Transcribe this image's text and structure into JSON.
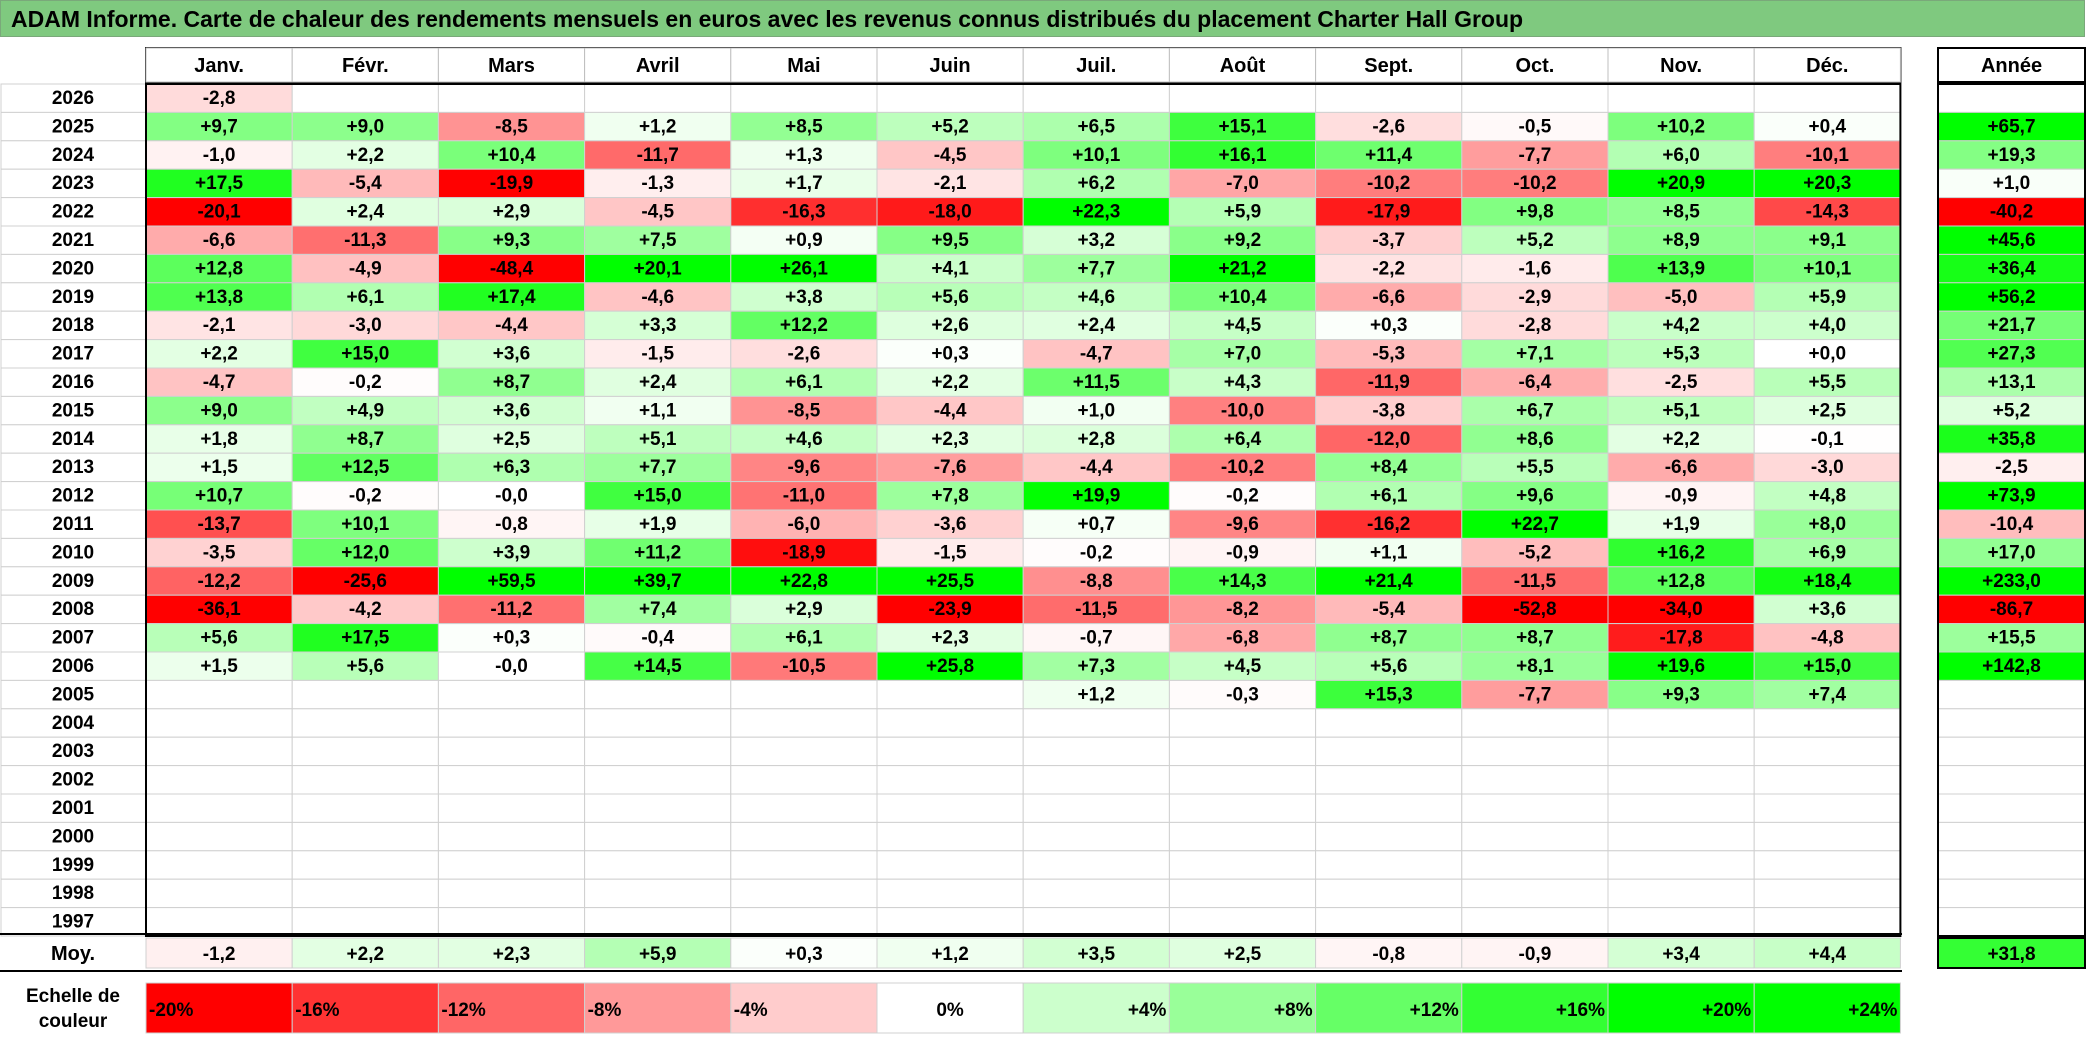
{
  "title": "ADAM Informe. Carte de chaleur des rendements mensuels en euros avec les revenus connus distribués du placement Charter Hall Group",
  "chart_data": {
    "type": "heatmap",
    "title": "ADAM Informe. Carte de chaleur des rendements mensuels en euros avec les revenus connus distribués du placement Charter Hall Group",
    "months": [
      "Janv.",
      "Févr.",
      "Mars",
      "Avril",
      "Mai",
      "Juin",
      "Juil.",
      "Août",
      "Sept.",
      "Oct.",
      "Nov.",
      "Déc."
    ],
    "year_header": "Année",
    "rows": [
      {
        "year": "2026",
        "values": [
          "-2,8",
          "",
          "",
          "",
          "",
          "",
          "",
          "",
          "",
          "",
          "",
          ""
        ],
        "annual": ""
      },
      {
        "year": "2025",
        "values": [
          "+9,7",
          "+9,0",
          "-8,5",
          "+1,2",
          "+8,5",
          "+5,2",
          "+6,5",
          "+15,1",
          "-2,6",
          "-0,5",
          "+10,2",
          "+0,4"
        ],
        "annual": "+65,7"
      },
      {
        "year": "2024",
        "values": [
          "-1,0",
          "+2,2",
          "+10,4",
          "-11,7",
          "+1,3",
          "-4,5",
          "+10,1",
          "+16,1",
          "+11,4",
          "-7,7",
          "+6,0",
          "-10,1"
        ],
        "annual": "+19,3"
      },
      {
        "year": "2023",
        "values": [
          "+17,5",
          "-5,4",
          "-19,9",
          "-1,3",
          "+1,7",
          "-2,1",
          "+6,2",
          "-7,0",
          "-10,2",
          "-10,2",
          "+20,9",
          "+20,3"
        ],
        "annual": "+1,0"
      },
      {
        "year": "2022",
        "values": [
          "-20,1",
          "+2,4",
          "+2,9",
          "-4,5",
          "-16,3",
          "-18,0",
          "+22,3",
          "+5,9",
          "-17,9",
          "+9,8",
          "+8,5",
          "-14,3"
        ],
        "annual": "-40,2"
      },
      {
        "year": "2021",
        "values": [
          "-6,6",
          "-11,3",
          "+9,3",
          "+7,5",
          "+0,9",
          "+9,5",
          "+3,2",
          "+9,2",
          "-3,7",
          "+5,2",
          "+8,9",
          "+9,1"
        ],
        "annual": "+45,6"
      },
      {
        "year": "2020",
        "values": [
          "+12,8",
          "-4,9",
          "-48,4",
          "+20,1",
          "+26,1",
          "+4,1",
          "+7,7",
          "+21,2",
          "-2,2",
          "-1,6",
          "+13,9",
          "+10,1"
        ],
        "annual": "+36,4"
      },
      {
        "year": "2019",
        "values": [
          "+13,8",
          "+6,1",
          "+17,4",
          "-4,6",
          "+3,8",
          "+5,6",
          "+4,6",
          "+10,4",
          "-6,6",
          "-2,9",
          "-5,0",
          "+5,9"
        ],
        "annual": "+56,2"
      },
      {
        "year": "2018",
        "values": [
          "-2,1",
          "-3,0",
          "-4,4",
          "+3,3",
          "+12,2",
          "+2,6",
          "+2,4",
          "+4,5",
          "+0,3",
          "-2,8",
          "+4,2",
          "+4,0"
        ],
        "annual": "+21,7"
      },
      {
        "year": "2017",
        "values": [
          "+2,2",
          "+15,0",
          "+3,6",
          "-1,5",
          "-2,6",
          "+0,3",
          "-4,7",
          "+7,0",
          "-5,3",
          "+7,1",
          "+5,3",
          "+0,0"
        ],
        "annual": "+27,3"
      },
      {
        "year": "2016",
        "values": [
          "-4,7",
          "-0,2",
          "+8,7",
          "+2,4",
          "+6,1",
          "+2,2",
          "+11,5",
          "+4,3",
          "-11,9",
          "-6,4",
          "-2,5",
          "+5,5"
        ],
        "annual": "+13,1"
      },
      {
        "year": "2015",
        "values": [
          "+9,0",
          "+4,9",
          "+3,6",
          "+1,1",
          "-8,5",
          "-4,4",
          "+1,0",
          "-10,0",
          "-3,8",
          "+6,7",
          "+5,1",
          "+2,5"
        ],
        "annual": "+5,2"
      },
      {
        "year": "2014",
        "values": [
          "+1,8",
          "+8,7",
          "+2,5",
          "+5,1",
          "+4,6",
          "+2,3",
          "+2,8",
          "+6,4",
          "-12,0",
          "+8,6",
          "+2,2",
          "-0,1"
        ],
        "annual": "+35,8"
      },
      {
        "year": "2013",
        "values": [
          "+1,5",
          "+12,5",
          "+6,3",
          "+7,7",
          "-9,6",
          "-7,6",
          "-4,4",
          "-10,2",
          "+8,4",
          "+5,5",
          "-6,6",
          "-3,0"
        ],
        "annual": "-2,5"
      },
      {
        "year": "2012",
        "values": [
          "+10,7",
          "-0,2",
          "-0,0",
          "+15,0",
          "-11,0",
          "+7,8",
          "+19,9",
          "-0,2",
          "+6,1",
          "+9,6",
          "-0,9",
          "+4,8"
        ],
        "annual": "+73,9"
      },
      {
        "year": "2011",
        "values": [
          "-13,7",
          "+10,1",
          "-0,8",
          "+1,9",
          "-6,0",
          "-3,6",
          "+0,7",
          "-9,6",
          "-16,2",
          "+22,7",
          "+1,9",
          "+8,0"
        ],
        "annual": "-10,4"
      },
      {
        "year": "2010",
        "values": [
          "-3,5",
          "+12,0",
          "+3,9",
          "+11,2",
          "-18,9",
          "-1,5",
          "-0,2",
          "-0,9",
          "+1,1",
          "-5,2",
          "+16,2",
          "+6,9"
        ],
        "annual": "+17,0"
      },
      {
        "year": "2009",
        "values": [
          "-12,2",
          "-25,6",
          "+59,5",
          "+39,7",
          "+22,8",
          "+25,5",
          "-8,8",
          "+14,3",
          "+21,4",
          "-11,5",
          "+12,8",
          "+18,4"
        ],
        "annual": "+233,0"
      },
      {
        "year": "2008",
        "values": [
          "-36,1",
          "-4,2",
          "-11,2",
          "+7,4",
          "+2,9",
          "-23,9",
          "-11,5",
          "-8,2",
          "-5,4",
          "-52,8",
          "-34,0",
          "+3,6"
        ],
        "annual": "-86,7"
      },
      {
        "year": "2007",
        "values": [
          "+5,6",
          "+17,5",
          "+0,3",
          "-0,4",
          "+6,1",
          "+2,3",
          "-0,7",
          "-6,8",
          "+8,7",
          "+8,7",
          "-17,8",
          "-4,8"
        ],
        "annual": "+15,5"
      },
      {
        "year": "2006",
        "values": [
          "+1,5",
          "+5,6",
          "-0,0",
          "+14,5",
          "-10,5",
          "+25,8",
          "+7,3",
          "+4,5",
          "+5,6",
          "+8,1",
          "+19,6",
          "+15,0"
        ],
        "annual": "+142,8"
      },
      {
        "year": "2005",
        "values": [
          "",
          "",
          "",
          "",
          "",
          "",
          "+1,2",
          "-0,3",
          "+15,3",
          "-7,7",
          "+9,3",
          "+7,4"
        ],
        "annual": ""
      },
      {
        "year": "2004",
        "values": [
          "",
          "",
          "",
          "",
          "",
          "",
          "",
          "",
          "",
          "",
          "",
          ""
        ],
        "annual": ""
      },
      {
        "year": "2003",
        "values": [
          "",
          "",
          "",
          "",
          "",
          "",
          "",
          "",
          "",
          "",
          "",
          ""
        ],
        "annual": ""
      },
      {
        "year": "2002",
        "values": [
          "",
          "",
          "",
          "",
          "",
          "",
          "",
          "",
          "",
          "",
          "",
          ""
        ],
        "annual": ""
      },
      {
        "year": "2001",
        "values": [
          "",
          "",
          "",
          "",
          "",
          "",
          "",
          "",
          "",
          "",
          "",
          ""
        ],
        "annual": ""
      },
      {
        "year": "2000",
        "values": [
          "",
          "",
          "",
          "",
          "",
          "",
          "",
          "",
          "",
          "",
          "",
          ""
        ],
        "annual": ""
      },
      {
        "year": "1999",
        "values": [
          "",
          "",
          "",
          "",
          "",
          "",
          "",
          "",
          "",
          "",
          "",
          ""
        ],
        "annual": ""
      },
      {
        "year": "1998",
        "values": [
          "",
          "",
          "",
          "",
          "",
          "",
          "",
          "",
          "",
          "",
          "",
          ""
        ],
        "annual": ""
      },
      {
        "year": "1997",
        "values": [
          "",
          "",
          "",
          "",
          "",
          "",
          "",
          "",
          "",
          "",
          "",
          ""
        ],
        "annual": ""
      }
    ],
    "average": {
      "label": "Moy.",
      "values": [
        "-1,2",
        "+2,2",
        "+2,3",
        "+5,9",
        "+0,3",
        "+1,2",
        "+3,5",
        "+2,5",
        "-0,8",
        "-0,9",
        "+3,4",
        "+4,4"
      ],
      "annual": "+31,8"
    },
    "scale": {
      "label_lines": [
        "Echelle de",
        "couleur"
      ],
      "steps": [
        {
          "text": "-20%",
          "value": -20
        },
        {
          "text": "-16%",
          "value": -16
        },
        {
          "text": "-12%",
          "value": -12
        },
        {
          "text": "-8%",
          "value": -8
        },
        {
          "text": "-4%",
          "value": -4
        },
        {
          "text": "0%",
          "value": 0
        },
        {
          "text": "+4%",
          "value": 4
        },
        {
          "text": "+8%",
          "value": 8
        },
        {
          "text": "+12%",
          "value": 12
        },
        {
          "text": "+16%",
          "value": 16
        },
        {
          "text": "+20%",
          "value": 20
        },
        {
          "text": "+24%",
          "value": 24
        }
      ]
    },
    "colors": {
      "negative": "#ff0000",
      "neutral": "#ffffff",
      "positive": "#00ff00",
      "title_bar": "#7fc97f"
    }
  }
}
